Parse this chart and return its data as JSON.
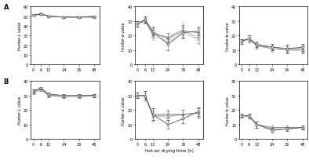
{
  "x": [
    0,
    6,
    12,
    24,
    36,
    48
  ],
  "row_A": {
    "L": {
      "series": [
        [
          51,
          52,
          50,
          49,
          49,
          50
        ],
        [
          51,
          52,
          50,
          49,
          49,
          49
        ],
        [
          51,
          53,
          50,
          49,
          49,
          49
        ],
        [
          51,
          52,
          50,
          49,
          49,
          49
        ]
      ],
      "errors": [
        [
          0.8,
          0.8,
          0.8,
          0.8,
          0.8,
          0.8
        ],
        [
          0.8,
          0.8,
          0.8,
          0.8,
          0.8,
          0.8
        ],
        [
          0.8,
          0.8,
          0.8,
          0.8,
          0.8,
          0.8
        ],
        [
          0.8,
          0.8,
          0.8,
          0.8,
          0.8,
          0.8
        ]
      ],
      "ylim": [
        0,
        60
      ],
      "yticks": [
        0,
        10,
        20,
        30,
        40,
        50,
        60
      ],
      "ylabel": "Hunter-L value"
    },
    "a": {
      "series": [
        [
          28,
          31,
          23,
          14,
          22,
          23
        ],
        [
          28,
          31,
          22,
          18,
          23,
          22
        ],
        [
          28,
          30,
          21,
          19,
          24,
          18
        ],
        [
          28,
          30,
          20,
          16,
          22,
          17
        ]
      ],
      "errors": [
        [
          2,
          2,
          3,
          4,
          4,
          3
        ],
        [
          2,
          2,
          3,
          4,
          4,
          3
        ],
        [
          2,
          2,
          3,
          3,
          4,
          3
        ],
        [
          2,
          2,
          3,
          3,
          3,
          3
        ]
      ],
      "ylim": [
        0,
        40
      ],
      "yticks": [
        0,
        10,
        20,
        30,
        40
      ],
      "ylabel": "Hunter-a value"
    },
    "b": {
      "series": [
        [
          16,
          18,
          14,
          12,
          11,
          12
        ],
        [
          16,
          18,
          13,
          12,
          11,
          11
        ],
        [
          16,
          18,
          13,
          11,
          10,
          10
        ],
        [
          16,
          17,
          13,
          11,
          10,
          10
        ]
      ],
      "errors": [
        [
          1.5,
          2,
          2,
          2,
          2.5,
          2.5
        ],
        [
          1.5,
          2,
          2,
          2,
          2.5,
          2.5
        ],
        [
          1.5,
          2,
          2,
          2,
          2.5,
          2.5
        ],
        [
          1.5,
          2,
          2,
          2,
          2.5,
          2.5
        ]
      ],
      "ylim": [
        0,
        40
      ],
      "yticks": [
        0,
        10,
        20,
        30,
        40
      ],
      "ylabel": "Hunter-b value"
    }
  },
  "row_B": {
    "L": {
      "series": [
        [
          33,
          35,
          31,
          30,
          30,
          30
        ],
        [
          33,
          35,
          30,
          30,
          30,
          30
        ],
        [
          32,
          34,
          30,
          29,
          29,
          30
        ],
        [
          32,
          34,
          30,
          29,
          29,
          30
        ]
      ],
      "errors": [
        [
          1,
          1,
          1,
          1,
          1,
          1
        ],
        [
          1,
          1,
          1,
          1,
          1,
          1
        ],
        [
          1,
          1,
          1,
          1,
          1,
          1
        ],
        [
          1,
          1,
          1,
          1,
          1,
          1
        ]
      ],
      "ylim": [
        0,
        40
      ],
      "yticks": [
        0,
        10,
        20,
        30,
        40
      ],
      "ylabel": "Hunter-L value"
    },
    "a": {
      "series": [
        [
          30,
          30,
          17,
          10,
          14,
          19
        ],
        [
          30,
          30,
          17,
          17,
          17,
          18
        ],
        [
          30,
          30,
          16,
          16,
          17,
          18
        ],
        [
          30,
          29,
          16,
          15,
          17,
          18
        ]
      ],
      "errors": [
        [
          2,
          3,
          4,
          3,
          3,
          3
        ],
        [
          2,
          3,
          4,
          3,
          3,
          3
        ],
        [
          2,
          3,
          4,
          3,
          3,
          3
        ],
        [
          2,
          3,
          3,
          3,
          3,
          3
        ]
      ],
      "ylim": [
        0,
        40
      ],
      "yticks": [
        0,
        10,
        20,
        30,
        40
      ],
      "ylabel": "Hunter-a value"
    },
    "b": {
      "series": [
        [
          16,
          16,
          10,
          6,
          7,
          8
        ],
        [
          16,
          16,
          10,
          8,
          8,
          8
        ],
        [
          16,
          16,
          10,
          7,
          7,
          8
        ],
        [
          16,
          15,
          10,
          7,
          7,
          8
        ]
      ],
      "errors": [
        [
          1.5,
          1.5,
          2,
          1.5,
          1.5,
          1.5
        ],
        [
          1.5,
          1.5,
          2,
          1.5,
          1.5,
          1.5
        ],
        [
          1.5,
          1.5,
          2,
          1.5,
          1.5,
          1.5
        ],
        [
          1.5,
          1.5,
          2,
          1.5,
          1.5,
          1.5
        ]
      ],
      "ylim": [
        0,
        40
      ],
      "yticks": [
        0,
        10,
        20,
        30,
        40
      ],
      "ylabel": "Hunter-b value"
    }
  },
  "markers": [
    "o",
    "s",
    "^",
    "D"
  ],
  "colors": [
    "#555555",
    "#777777",
    "#999999",
    "#bbbbbb"
  ],
  "markersize": 2.0,
  "linewidth": 0.6,
  "xlabel": "Hot-air drying time (h)",
  "row_labels": [
    "A",
    "B"
  ],
  "xticks": [
    0,
    6,
    12,
    24,
    36,
    48
  ]
}
